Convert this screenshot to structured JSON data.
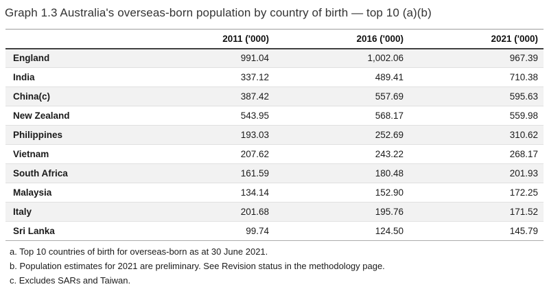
{
  "title": "Graph 1.3 Australia's overseas-born population by country of birth — top 10 (a)(b)",
  "table": {
    "corner_label": "",
    "columns": [
      "2011 ('000)",
      "2016 ('000)",
      "2021 ('000)"
    ],
    "rows": [
      {
        "country": "England",
        "values": [
          "991.04",
          "1,002.06",
          "967.39"
        ]
      },
      {
        "country": "India",
        "values": [
          "337.12",
          "489.41",
          "710.38"
        ]
      },
      {
        "country": "China(c)",
        "values": [
          "387.42",
          "557.69",
          "595.63"
        ]
      },
      {
        "country": "New Zealand",
        "values": [
          "543.95",
          "568.17",
          "559.98"
        ]
      },
      {
        "country": "Philippines",
        "values": [
          "193.03",
          "252.69",
          "310.62"
        ]
      },
      {
        "country": "Vietnam",
        "values": [
          "207.62",
          "243.22",
          "268.17"
        ]
      },
      {
        "country": "South Africa",
        "values": [
          "161.59",
          "180.48",
          "201.93"
        ]
      },
      {
        "country": "Malaysia",
        "values": [
          "134.14",
          "152.90",
          "172.25"
        ]
      },
      {
        "country": "Italy",
        "values": [
          "201.68",
          "195.76",
          "171.52"
        ]
      },
      {
        "country": "Sri Lanka",
        "values": [
          "99.74",
          "124.50",
          "145.79"
        ]
      }
    ]
  },
  "footnotes": [
    "a. Top 10 countries of birth for overseas-born as at 30 June 2021.",
    "b. Population estimates for 2021 are preliminary. See Revision status in the methodology page.",
    "c. Excludes SARs and Taiwan."
  ],
  "colors": {
    "row_stripe": "#f2f2f2",
    "header_rule": "#404040",
    "top_rule": "#9b9b9b",
    "text": "#1a1a1a"
  },
  "chart_data": {
    "type": "table",
    "title": "Graph 1.3 Australia's overseas-born population by country of birth — top 10 (a)(b)",
    "categories": [
      "England",
      "India",
      "China(c)",
      "New Zealand",
      "Philippines",
      "Vietnam",
      "South Africa",
      "Malaysia",
      "Italy",
      "Sri Lanka"
    ],
    "series": [
      {
        "name": "2011 ('000)",
        "values": [
          991.04,
          337.12,
          387.42,
          543.95,
          193.03,
          207.62,
          161.59,
          134.14,
          201.68,
          99.74
        ]
      },
      {
        "name": "2016 ('000)",
        "values": [
          1002.06,
          489.41,
          557.69,
          568.17,
          252.69,
          243.22,
          180.48,
          152.9,
          195.76,
          124.5
        ]
      },
      {
        "name": "2021 ('000)",
        "values": [
          967.39,
          710.38,
          595.63,
          559.98,
          310.62,
          268.17,
          201.93,
          172.25,
          171.52,
          145.79
        ]
      }
    ],
    "unit": "thousands of persons",
    "notes": [
      "a. Top 10 countries of birth for overseas-born as at 30 June 2021.",
      "b. Population estimates for 2021 are preliminary. See Revision status in the methodology page.",
      "c. Excludes SARs and Taiwan."
    ]
  }
}
